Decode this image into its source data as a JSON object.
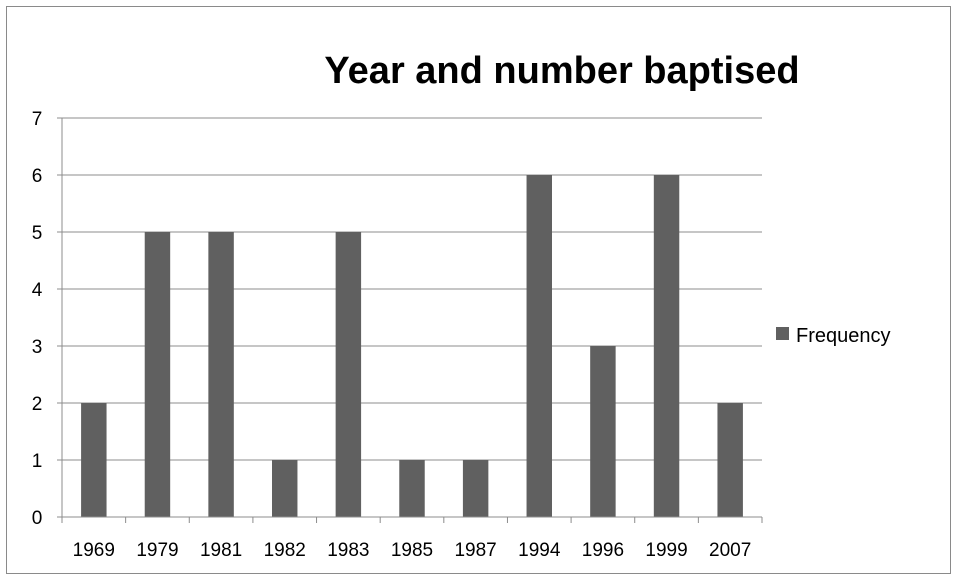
{
  "chart_data": {
    "type": "bar",
    "title": "Year and number baptised",
    "xlabel": "",
    "ylabel": "",
    "categories": [
      "1969",
      "1979",
      "1981",
      "1982",
      "1983",
      "1985",
      "1987",
      "1994",
      "1996",
      "1999",
      "2007"
    ],
    "series": [
      {
        "name": "Frequency",
        "values": [
          2,
          5,
          5,
          1,
          5,
          1,
          1,
          6,
          3,
          6,
          2
        ],
        "color": "#606060"
      }
    ],
    "ylim": [
      0,
      7
    ],
    "yticks": [
      0,
      1,
      2,
      3,
      4,
      5,
      6,
      7
    ],
    "grid": true,
    "legend": "right"
  }
}
